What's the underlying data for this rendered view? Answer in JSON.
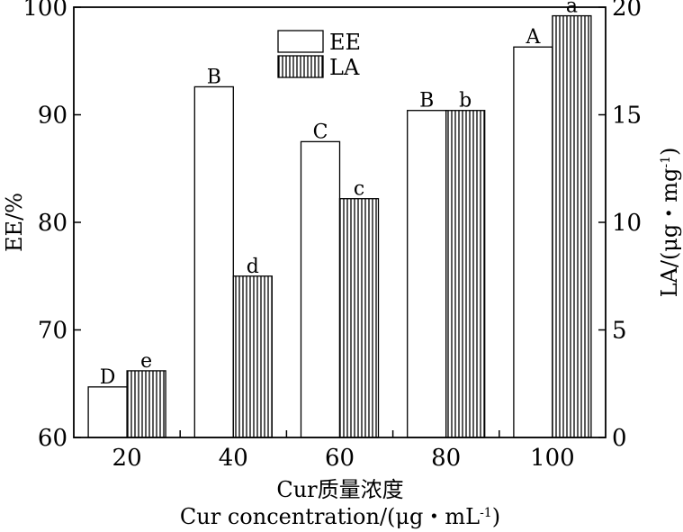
{
  "chart_data": {
    "type": "bar",
    "categories": [
      "20",
      "40",
      "60",
      "80",
      "100"
    ],
    "series": [
      {
        "name": "EE",
        "axis": "left",
        "pattern": "plain",
        "values": [
          64.7,
          92.6,
          87.5,
          90.4,
          96.3
        ],
        "labels": [
          "D",
          "B",
          "C",
          "B",
          "A"
        ]
      },
      {
        "name": "LA",
        "axis": "right",
        "pattern": "vertical-stripes",
        "values": [
          3.1,
          7.5,
          11.1,
          15.2,
          19.6
        ],
        "labels": [
          "e",
          "d",
          "c",
          "b",
          "a"
        ]
      }
    ],
    "ylabel": "EE/%",
    "y2label": "LA/(μg・mg",
    "y2label_sup": "-1",
    "y2label_end": ")",
    "ylim": [
      60,
      100
    ],
    "y2lim": [
      0,
      20
    ],
    "yticks": [
      "60",
      "70",
      "80",
      "90",
      "100"
    ],
    "y2ticks": [
      "0",
      "5",
      "10",
      "15",
      "20"
    ],
    "xlabel_cn": "Cur质量浓度",
    "xlabel_en": "Cur concentration/(μg・mL",
    "xlabel_en_sup": "-1",
    "xlabel_en_end": ")",
    "grid": false,
    "legend_position": "top-center"
  }
}
